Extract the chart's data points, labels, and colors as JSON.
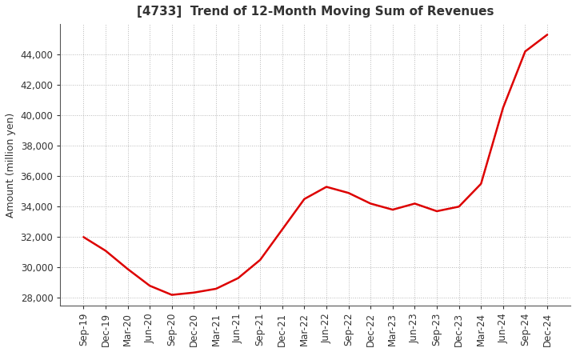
{
  "title": "[4733]  Trend of 12-Month Moving Sum of Revenues",
  "ylabel": "Amount (million yen)",
  "line_color": "#dd0000",
  "background_color": "#ffffff",
  "plot_background_color": "#ffffff",
  "grid_color": "#999999",
  "x_labels": [
    "Sep-19",
    "Dec-19",
    "Mar-20",
    "Jun-20",
    "Sep-20",
    "Dec-20",
    "Mar-21",
    "Jun-21",
    "Sep-21",
    "Dec-21",
    "Mar-22",
    "Jun-22",
    "Sep-22",
    "Dec-22",
    "Mar-23",
    "Jun-23",
    "Sep-23",
    "Dec-23",
    "Mar-24",
    "Jun-24",
    "Sep-24",
    "Dec-24"
  ],
  "values": [
    32000,
    31100,
    29900,
    28800,
    28200,
    28350,
    28600,
    29300,
    30500,
    32500,
    34500,
    35300,
    34900,
    34200,
    33800,
    34200,
    33700,
    34000,
    35500,
    40500,
    44200,
    45300
  ],
  "ylim": [
    27500,
    46000
  ],
  "yticks": [
    28000,
    30000,
    32000,
    34000,
    36000,
    38000,
    40000,
    42000,
    44000
  ],
  "title_fontsize": 11,
  "axis_fontsize": 9,
  "tick_fontsize": 8.5
}
